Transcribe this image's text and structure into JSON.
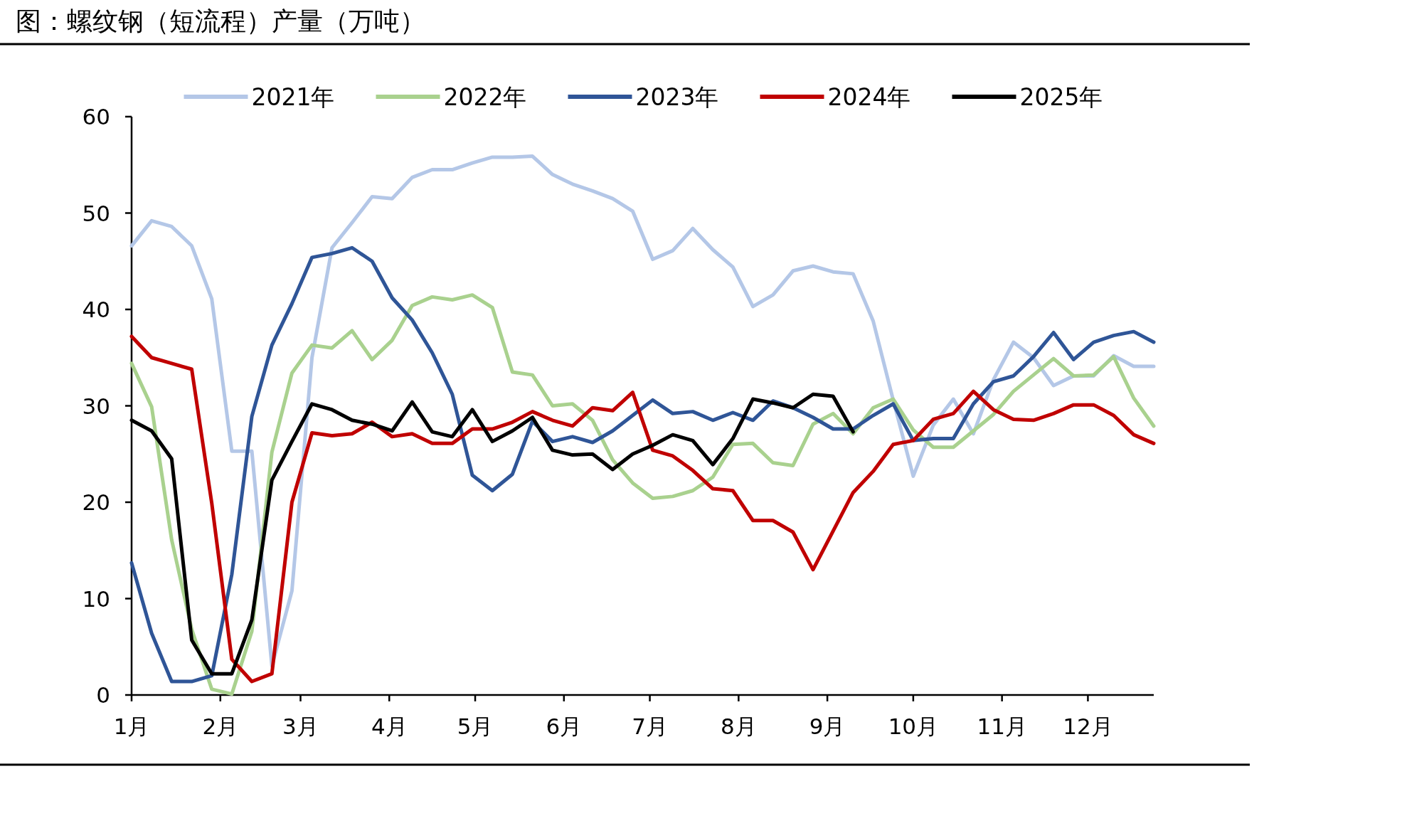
{
  "chart_data": {
    "type": "line",
    "title": "图：螺纹钢（短流程）产量（万吨）",
    "legend": "top",
    "grid": false,
    "marker": "none",
    "line_style": "solid",
    "x": [
      "--01-01",
      "--01-08",
      "--01-15",
      "--01-22",
      "--01-29",
      "--02-05",
      "--02-12",
      "--02-19",
      "--02-26",
      "--03-05",
      "--03-12",
      "--03-19",
      "--03-26",
      "--04-02",
      "--04-09",
      "--04-16",
      "--04-23",
      "--04-30",
      "--05-07",
      "--05-14",
      "--05-21",
      "--05-28",
      "--06-04",
      "--06-11",
      "--06-18",
      "--06-25",
      "--07-02",
      "--07-09",
      "--07-16",
      "--07-23",
      "--07-30",
      "--08-06",
      "--08-13",
      "--08-20",
      "--08-27",
      "--09-03",
      "--09-10",
      "--09-17",
      "--09-24",
      "--10-01",
      "--10-08",
      "--10-15",
      "--10-22",
      "--10-29",
      "--11-05",
      "--11-12",
      "--11-19",
      "--11-26",
      "--12-03",
      "--12-10",
      "--12-17",
      "--12-24"
    ],
    "xlim": [
      "--01-01",
      "--12-24"
    ],
    "ylim": [
      0,
      60
    ],
    "yticks": [
      0,
      10,
      20,
      30,
      40,
      50,
      60
    ],
    "xticks": [
      {
        "value": "--01-01",
        "label": "1月"
      },
      {
        "value": "--02-01",
        "label": "2月"
      },
      {
        "value": "--03-01",
        "label": "3月"
      },
      {
        "value": "--04-01",
        "label": "4月"
      },
      {
        "value": "--05-01",
        "label": "5月"
      },
      {
        "value": "--06-01",
        "label": "6月"
      },
      {
        "value": "--07-01",
        "label": "7月"
      },
      {
        "value": "--08-01",
        "label": "8月"
      },
      {
        "value": "--09-01",
        "label": "9月"
      },
      {
        "value": "--10-01",
        "label": "10月"
      },
      {
        "value": "--11-01",
        "label": "11月"
      },
      {
        "value": "--12-01",
        "label": "12月"
      }
    ],
    "series": [
      {
        "name": "2021年",
        "color": "#b4c7e7",
        "values": [
          46.6,
          49.2,
          48.6,
          46.6,
          41.1,
          25.3,
          25.3,
          3.0,
          10.8,
          35.0,
          46.4,
          49.0,
          51.7,
          51.5,
          53.7,
          54.5,
          54.5,
          55.2,
          55.8,
          55.8,
          55.9,
          54.0,
          53.0,
          52.3,
          51.5,
          50.2,
          45.2,
          46.1,
          48.4,
          46.2,
          44.4,
          40.3,
          41.5,
          44.0,
          44.5,
          43.9,
          43.7,
          38.8,
          30.6,
          22.7,
          28.0,
          30.7,
          27.1,
          32.7,
          36.6,
          35.0,
          32.1,
          33.1,
          33.1,
          35.2,
          34.1,
          34.1
        ]
      },
      {
        "name": "2022年",
        "color": "#a9d18e",
        "values": [
          34.4,
          29.9,
          16.1,
          6.8,
          0.6,
          0.1,
          6.6,
          25.2,
          33.4,
          36.3,
          36.0,
          37.8,
          34.8,
          36.8,
          40.4,
          41.3,
          41.0,
          41.5,
          40.2,
          33.5,
          33.2,
          30.0,
          30.2,
          28.5,
          24.4,
          22.0,
          20.4,
          20.6,
          21.2,
          22.6,
          26.0,
          26.1,
          24.1,
          23.8,
          28.1,
          29.2,
          27.1,
          29.8,
          30.7,
          27.5,
          25.7,
          25.7,
          27.4,
          29.1,
          31.5,
          33.2,
          34.9,
          33.1,
          33.2,
          35.1,
          30.8,
          27.9
        ]
      },
      {
        "name": "2023年",
        "color": "#2f5597",
        "values": [
          13.7,
          6.4,
          1.4,
          1.4,
          2.0,
          12.5,
          28.9,
          36.3,
          40.6,
          45.4,
          45.8,
          46.4,
          45.0,
          41.2,
          38.9,
          35.5,
          31.2,
          22.8,
          21.2,
          22.9,
          28.4,
          26.3,
          26.8,
          26.2,
          27.4,
          29.0,
          30.6,
          29.2,
          29.4,
          28.5,
          29.3,
          28.5,
          30.5,
          29.8,
          28.8,
          27.6,
          27.6,
          29.0,
          30.2,
          26.4,
          26.6,
          26.6,
          30.2,
          32.5,
          33.1,
          35.1,
          37.6,
          34.8,
          36.6,
          37.3,
          37.7,
          36.6
        ]
      },
      {
        "name": "2024年",
        "color": "#c00000",
        "values": [
          37.2,
          35.0,
          34.4,
          33.8,
          19.9,
          3.7,
          1.4,
          2.2,
          20.0,
          27.2,
          26.9,
          27.1,
          28.3,
          26.8,
          27.1,
          26.1,
          26.1,
          27.6,
          27.6,
          28.3,
          29.4,
          28.5,
          27.9,
          29.8,
          29.5,
          31.4,
          25.4,
          24.8,
          23.3,
          21.4,
          21.2,
          18.1,
          18.1,
          16.9,
          13.0,
          17.0,
          21.0,
          23.2,
          26.0,
          26.4,
          28.6,
          29.2,
          31.5,
          29.6,
          28.6,
          28.5,
          29.2,
          30.1,
          30.1,
          29.0,
          27.0,
          26.1
        ]
      },
      {
        "name": "2025年",
        "color": "#000000",
        "values": [
          28.5,
          27.4,
          24.5,
          5.7,
          2.2,
          2.2,
          7.8,
          22.3,
          26.3,
          30.2,
          29.6,
          28.5,
          28.1,
          27.4,
          30.4,
          27.3,
          26.8,
          29.6,
          26.3,
          27.4,
          28.8,
          25.4,
          24.9,
          25.0,
          23.4,
          25.0,
          25.9,
          27.0,
          26.4,
          23.9,
          26.6,
          30.7,
          30.3,
          29.8,
          31.2,
          31.0,
          27.3,
          null,
          null,
          null,
          null,
          null,
          null,
          null,
          null,
          null,
          null,
          null,
          null,
          null,
          null,
          null
        ]
      }
    ]
  }
}
